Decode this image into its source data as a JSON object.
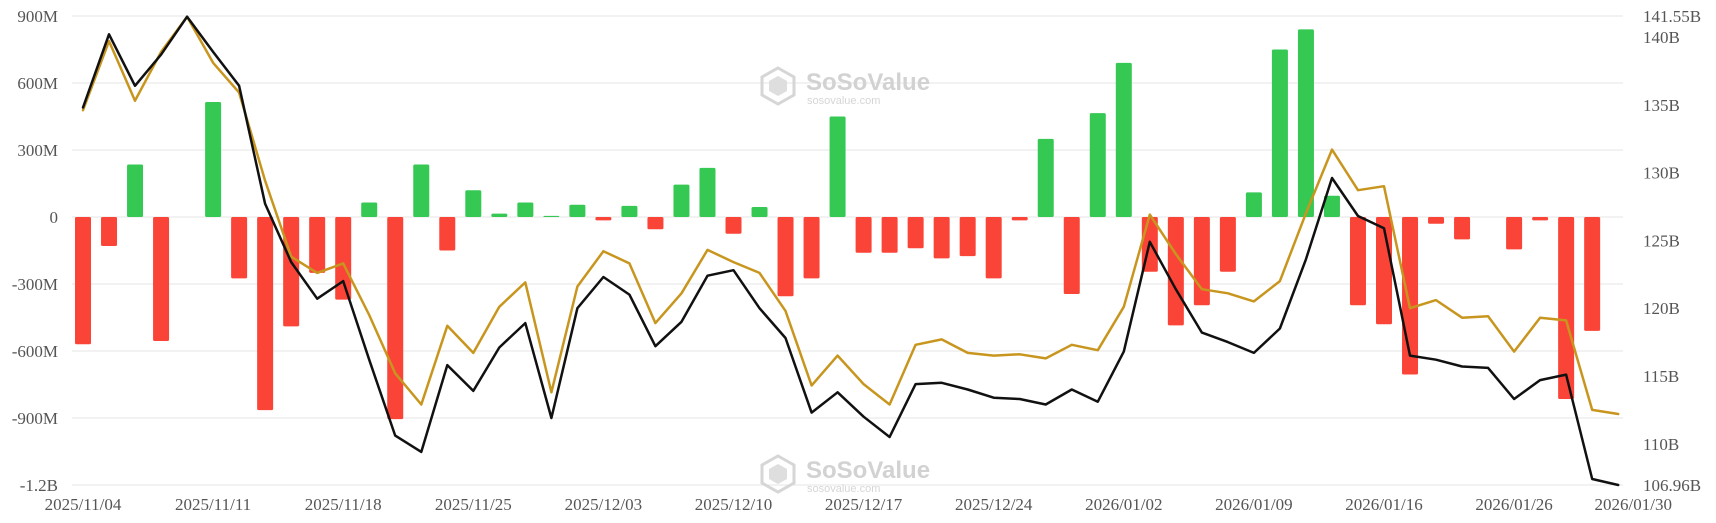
{
  "chart_data": {
    "type": "bar+line",
    "title": "",
    "xlabel": "",
    "ylabel": "",
    "ylim_left": [
      -1200,
      900
    ],
    "ylim_right": [
      106.96,
      141.55
    ],
    "left_ticks": [
      {
        "v": 900,
        "label": "900M"
      },
      {
        "v": 600,
        "label": "600M"
      },
      {
        "v": 300,
        "label": "300M"
      },
      {
        "v": 0,
        "label": "0"
      },
      {
        "v": -300,
        "label": "-300M"
      },
      {
        "v": -600,
        "label": "-600M"
      },
      {
        "v": -900,
        "label": "-900M"
      },
      {
        "v": -1200,
        "label": "-1.2B"
      }
    ],
    "right_ticks": [
      {
        "v": 141.55,
        "label": "141.55B"
      },
      {
        "v": 140,
        "label": "140B"
      },
      {
        "v": 135,
        "label": "135B"
      },
      {
        "v": 130,
        "label": "130B"
      },
      {
        "v": 125,
        "label": "125B"
      },
      {
        "v": 120,
        "label": "120B"
      },
      {
        "v": 115,
        "label": "115B"
      },
      {
        "v": 110,
        "label": "110B"
      },
      {
        "v": 106.96,
        "label": "106.96B"
      }
    ],
    "x_ticks": [
      {
        "i": 0,
        "label": "2025/11/04"
      },
      {
        "i": 5,
        "label": "2025/11/11"
      },
      {
        "i": 10,
        "label": "2025/11/18"
      },
      {
        "i": 15,
        "label": "2025/11/25"
      },
      {
        "i": 20,
        "label": "2025/12/03"
      },
      {
        "i": 25,
        "label": "2025/12/10"
      },
      {
        "i": 30,
        "label": "2025/12/17"
      },
      {
        "i": 35,
        "label": "2025/12/24"
      },
      {
        "i": 40,
        "label": "2026/01/02"
      },
      {
        "i": 45,
        "label": "2026/01/09"
      },
      {
        "i": 50,
        "label": "2026/01/16"
      },
      {
        "i": 55,
        "label": "2026/01/26"
      },
      {
        "i": 59,
        "label": "2026/01/30"
      }
    ],
    "flows": [
      -570,
      -130,
      235,
      -555,
      0,
      515,
      -275,
      -865,
      -490,
      -250,
      -370,
      65,
      -905,
      235,
      -150,
      120,
      15,
      65,
      5,
      55,
      -15,
      50,
      -55,
      145,
      220,
      -75,
      45,
      -355,
      -275,
      450,
      -160,
      -160,
      -140,
      -185,
      -175,
      -275,
      -15,
      350,
      -345,
      465,
      690,
      -245,
      -485,
      -395,
      -245,
      110,
      750,
      840,
      95,
      -395,
      -480,
      -705,
      -30,
      -100,
      0,
      -145,
      -15,
      -815,
      -510,
      0
    ],
    "series": [
      {
        "name": "",
        "color": "#111111",
        "values": [
          134.8,
          140.2,
          136.4,
          138.7,
          141.5,
          138.9,
          136.4,
          127.7,
          123.4,
          120.7,
          122.0,
          116.2,
          110.6,
          109.4,
          115.8,
          113.9,
          117.1,
          118.9,
          111.9,
          120.0,
          122.3,
          121.0,
          117.2,
          119.0,
          122.4,
          122.8,
          120.0,
          117.8,
          112.3,
          113.8,
          112.0,
          110.5,
          114.4,
          114.5,
          114.0,
          113.4,
          113.3,
          112.9,
          114.0,
          113.1,
          116.8,
          124.9,
          121.4,
          118.2,
          117.5,
          116.7,
          118.5,
          123.6,
          129.6,
          126.8,
          125.9,
          116.5,
          116.2,
          115.7,
          115.6,
          113.3,
          114.7,
          115.1,
          107.4,
          106.96
        ]
      },
      {
        "name": "",
        "color": "#c8961e",
        "values": [
          134.6,
          139.7,
          135.3,
          138.9,
          141.5,
          138.1,
          135.9,
          129.4,
          123.8,
          122.6,
          123.3,
          119.5,
          115.2,
          112.9,
          118.7,
          116.7,
          120.1,
          121.9,
          113.8,
          121.6,
          124.2,
          123.3,
          118.9,
          121.1,
          124.3,
          123.4,
          122.6,
          119.8,
          114.3,
          116.5,
          114.4,
          112.9,
          117.3,
          117.7,
          116.7,
          116.5,
          116.6,
          116.3,
          117.3,
          116.9,
          120.1,
          126.9,
          124.0,
          121.4,
          121.1,
          120.5,
          122.0,
          127.0,
          131.7,
          128.7,
          129.0,
          120.0,
          120.6,
          119.3,
          119.4,
          116.8,
          119.3,
          119.1,
          112.5,
          112.2
        ]
      }
    ],
    "bar_colors": {
      "positive": "#35c853",
      "negative": "#fa4437"
    },
    "grid": true,
    "legend": "none"
  },
  "watermark": {
    "brand": "SoSoValue",
    "sub": "sosovalue.com"
  }
}
